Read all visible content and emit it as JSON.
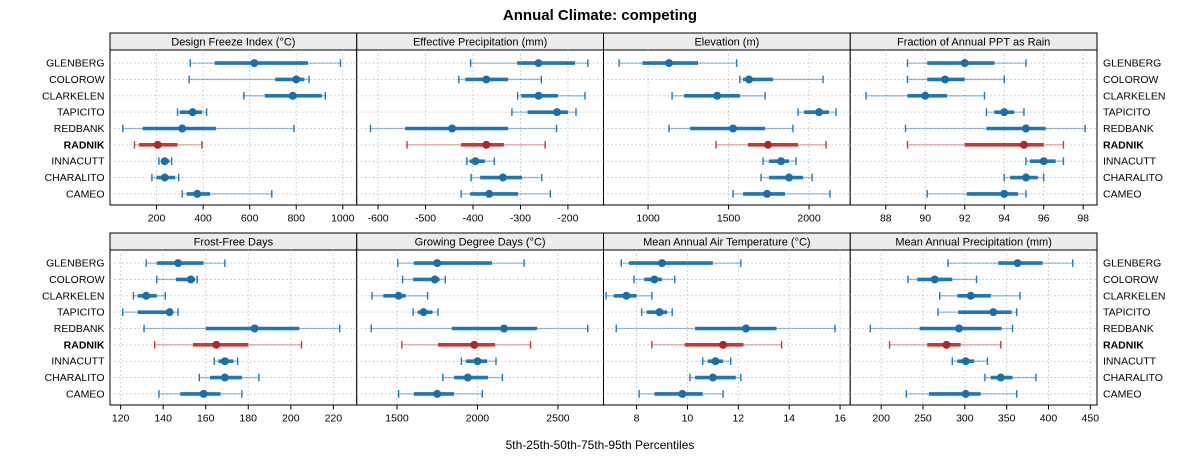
{
  "title": "Annual Climate: competing",
  "caption": "5th-25th-50th-75th-95th Percentiles",
  "colors": {
    "series": "#2077b4",
    "series_dot": "#1d6ea8",
    "highlight": "#c23b3b",
    "highlight_dot": "#b02525",
    "strip_bg": "#ececec",
    "panel_border": "#000000",
    "grid": "#c4c4c4"
  },
  "highlight_station": "RADNIK",
  "stations": [
    "GLENBERG",
    "COLOROW",
    "CLARKELEN",
    "TAPICITO",
    "REDBANK",
    "RADNIK",
    "INNACUTT",
    "CHARALITO",
    "CAMEO"
  ],
  "chart_data": {
    "type": "dotplot-percentiles",
    "percentile_labels": [
      "5th",
      "25th",
      "50th",
      "75th",
      "95th"
    ],
    "note": "Each row per station: [p5, p25, p50, p75, p95]; station order matches stations list",
    "panels": [
      {
        "slug": "design-freeze-index",
        "title": "Design Freeze Index (°C)",
        "row": 0,
        "col": 0,
        "xlim": [
          0,
          1060
        ],
        "ticks": [
          200,
          400,
          600,
          800,
          1000
        ],
        "series": [
          [
            345,
            450,
            620,
            850,
            990
          ],
          [
            340,
            710,
            800,
            835,
            855
          ],
          [
            575,
            665,
            785,
            910,
            925
          ],
          [
            290,
            300,
            355,
            395,
            415
          ],
          [
            55,
            140,
            310,
            455,
            790
          ],
          [
            105,
            125,
            205,
            290,
            395
          ],
          [
            210,
            220,
            235,
            255,
            265
          ],
          [
            180,
            200,
            235,
            280,
            295
          ],
          [
            310,
            330,
            375,
            430,
            695
          ]
        ]
      },
      {
        "slug": "effective-precipitation",
        "title": "Effective Precipitation (mm)",
        "row": 0,
        "col": 1,
        "xlim": [
          -645,
          -125
        ],
        "ticks": [
          -600,
          -500,
          -400,
          -300,
          -200
        ],
        "series": [
          [
            -405,
            -307,
            -262,
            -185,
            -158
          ],
          [
            -430,
            -416,
            -372,
            -326,
            -256
          ],
          [
            -306,
            -298,
            -262,
            -221,
            -164
          ],
          [
            -318,
            -285,
            -223,
            -200,
            -183
          ],
          [
            -616,
            -543,
            -444,
            -326,
            -224
          ],
          [
            -539,
            -425,
            -372,
            -335,
            -248
          ],
          [
            -413,
            -407,
            -395,
            -375,
            -355
          ],
          [
            -404,
            -385,
            -337,
            -297,
            -255
          ],
          [
            -425,
            -406,
            -366,
            -305,
            -237
          ]
        ]
      },
      {
        "slug": "elevation",
        "title": "Elevation (m)",
        "row": 0,
        "col": 2,
        "xlim": [
          723,
          2256
        ],
        "ticks": [
          1000,
          1500,
          2000
        ],
        "series": [
          [
            820,
            965,
            1130,
            1310,
            1550
          ],
          [
            1570,
            1590,
            1627,
            1776,
            2087
          ],
          [
            1149,
            1224,
            1429,
            1571,
            1727
          ],
          [
            1932,
            1969,
            2062,
            2124,
            2168
          ],
          [
            1130,
            1261,
            1528,
            1727,
            1900
          ],
          [
            1422,
            1621,
            1745,
            1932,
            2106
          ],
          [
            1714,
            1752,
            1826,
            1876,
            1919
          ],
          [
            1702,
            1752,
            1876,
            1963,
            2019
          ],
          [
            1528,
            1590,
            1739,
            1851,
            2130
          ]
        ]
      },
      {
        "slug": "fraction-ppt-rain",
        "title": "Fraction of Annual PPT as Rain",
        "row": 0,
        "col": 3,
        "xlim": [
          86.2,
          98.7
        ],
        "ticks": [
          88,
          90,
          92,
          94,
          96,
          98
        ],
        "series": [
          [
            89.1,
            90.1,
            92.0,
            93.5,
            95.1
          ],
          [
            89.1,
            90.1,
            91.0,
            92.0,
            94.0
          ],
          [
            87.0,
            89.1,
            90.0,
            91.1,
            93.0
          ],
          [
            93.1,
            93.5,
            94.0,
            94.5,
            95.0
          ],
          [
            89.0,
            93.1,
            95.1,
            96.1,
            98.1
          ],
          [
            89.1,
            92.0,
            95.0,
            96.0,
            97.0
          ],
          [
            95.1,
            95.3,
            96.0,
            96.6,
            97.0
          ],
          [
            94.0,
            94.3,
            95.1,
            95.7,
            96.0
          ],
          [
            90.1,
            92.1,
            94.0,
            94.7,
            95.1
          ]
        ]
      },
      {
        "slug": "frost-free-days",
        "title": "Frost-Free Days",
        "row": 1,
        "col": 0,
        "xlim": [
          115,
          231
        ],
        "ticks": [
          120,
          140,
          160,
          180,
          200,
          220
        ],
        "series": [
          [
            132,
            137,
            147,
            159,
            169
          ],
          [
            137,
            146,
            153,
            155,
            156
          ],
          [
            126,
            128,
            132,
            137,
            141
          ],
          [
            121,
            128,
            143,
            144,
            147
          ],
          [
            131,
            160,
            183,
            204,
            223
          ],
          [
            136,
            154,
            165,
            180,
            205
          ],
          [
            164,
            166,
            169,
            173,
            175
          ],
          [
            157,
            162,
            169,
            177,
            185
          ],
          [
            138,
            148,
            159,
            167,
            177
          ]
        ]
      },
      {
        "slug": "growing-degree-days",
        "title": "Growing Degree Days (°C)",
        "row": 1,
        "col": 1,
        "xlim": [
          1250,
          2783
        ],
        "ticks": [
          1500,
          2000,
          2500
        ],
        "series": [
          [
            1505,
            1605,
            1750,
            2090,
            2290
          ],
          [
            1535,
            1600,
            1735,
            1765,
            1800
          ],
          [
            1345,
            1415,
            1510,
            1555,
            1690
          ],
          [
            1600,
            1630,
            1665,
            1720,
            1755
          ],
          [
            1340,
            1840,
            2165,
            2370,
            2685
          ],
          [
            1530,
            1755,
            1980,
            2110,
            2330
          ],
          [
            1900,
            1930,
            2000,
            2060,
            2115
          ],
          [
            1785,
            1855,
            1940,
            2065,
            2155
          ],
          [
            1510,
            1605,
            1750,
            1855,
            2030
          ]
        ]
      },
      {
        "slug": "mean-annual-air-temperature",
        "title": "Mean Annual Air Temperature (°C)",
        "row": 1,
        "col": 2,
        "xlim": [
          6.7,
          16.4
        ],
        "ticks": [
          8,
          10,
          12,
          14,
          16
        ],
        "series": [
          [
            7.4,
            7.7,
            9.0,
            11.0,
            12.1
          ],
          [
            7.9,
            8.3,
            8.7,
            9.0,
            9.5
          ],
          [
            6.8,
            7.1,
            7.6,
            8.0,
            8.6
          ],
          [
            8.2,
            8.4,
            8.9,
            9.2,
            9.4
          ],
          [
            7.2,
            10.3,
            12.3,
            13.5,
            15.8
          ],
          [
            8.6,
            9.9,
            11.4,
            12.2,
            13.7
          ],
          [
            10.6,
            10.8,
            11.1,
            11.4,
            11.7
          ],
          [
            10.1,
            10.3,
            11.0,
            11.9,
            12.1
          ],
          [
            8.1,
            8.7,
            9.8,
            10.6,
            11.4
          ]
        ]
      },
      {
        "slug": "mean-annual-precipitation",
        "title": "Mean Annual Precipitation (mm)",
        "row": 1,
        "col": 3,
        "xlim": [
          163,
          458
        ],
        "ticks": [
          200,
          250,
          300,
          350,
          400,
          450
        ],
        "series": [
          [
            280,
            340,
            363,
            393,
            429
          ],
          [
            232,
            243,
            264,
            285,
            314
          ],
          [
            270,
            291,
            307,
            331,
            366
          ],
          [
            268,
            292,
            334,
            356,
            362
          ],
          [
            187,
            246,
            293,
            344,
            357
          ],
          [
            210,
            255,
            278,
            295,
            343
          ],
          [
            285,
            291,
            301,
            311,
            327
          ],
          [
            324,
            331,
            343,
            357,
            385
          ],
          [
            230,
            257,
            301,
            319,
            362
          ]
        ]
      }
    ]
  }
}
